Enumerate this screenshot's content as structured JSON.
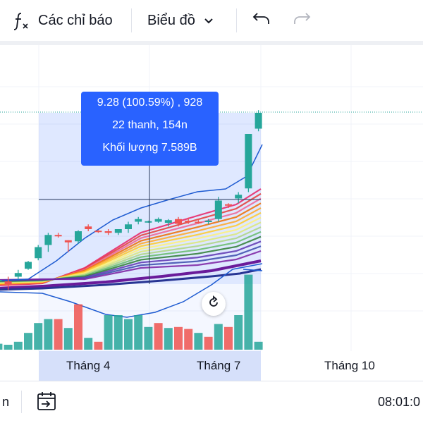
{
  "toolbar": {
    "indicators_label": "Các chỉ báo",
    "chart_type_label": "Biểu đồ"
  },
  "icons": [
    "function-icon",
    "chevron-down-icon",
    "undo-icon",
    "redo-icon",
    "calendar-goto-icon",
    "reset-chart-icon"
  ],
  "tooltip": {
    "line1": "9.28 (100.59%) , 928",
    "line2": "22 thanh, 154n",
    "line3": "Khối lượng 7.589B"
  },
  "x_axis": {
    "labels": [
      "Tháng 4",
      "Tháng 7",
      "Tháng 10"
    ]
  },
  "bottom_bar": {
    "range_label": "n",
    "time_label": "08:01:0"
  },
  "colors": {
    "up": "#26a69a",
    "down": "#ef5350",
    "accent": "#2962ff",
    "selection": "#d6e0fa"
  },
  "chart_data": {
    "type": "candlestick",
    "candles": [
      {
        "o": 4.63,
        "h": 4.7,
        "l": 4.52,
        "c": 4.63,
        "up": true
      },
      {
        "o": 4.64,
        "h": 4.74,
        "l": 4.52,
        "c": 4.64,
        "up": true
      },
      {
        "o": 4.64,
        "h": 4.74,
        "l": 4.52,
        "c": 4.64,
        "up": true
      },
      {
        "o": 4.56,
        "h": 4.7,
        "l": 4.45,
        "c": 4.61,
        "up": false
      },
      {
        "o": 4.7,
        "h": 4.83,
        "l": 4.65,
        "c": 4.77,
        "up": true
      },
      {
        "o": 4.85,
        "h": 5.0,
        "l": 4.83,
        "c": 4.98,
        "up": true
      },
      {
        "o": 5.05,
        "h": 5.3,
        "l": 5.01,
        "c": 5.26,
        "up": true
      },
      {
        "o": 5.3,
        "h": 5.53,
        "l": 5.17,
        "c": 5.49,
        "up": true
      },
      {
        "o": 5.49,
        "h": 5.53,
        "l": 5.44,
        "c": 5.49,
        "up": false
      },
      {
        "o": 5.39,
        "h": 5.39,
        "l": 5.17,
        "c": 5.35,
        "up": false
      },
      {
        "o": 5.37,
        "h": 5.58,
        "l": 5.32,
        "c": 5.56,
        "up": true
      },
      {
        "o": 5.6,
        "h": 5.69,
        "l": 5.56,
        "c": 5.65,
        "up": false
      },
      {
        "o": 5.57,
        "h": 5.58,
        "l": 5.53,
        "c": 5.56,
        "up": false
      },
      {
        "o": 5.53,
        "h": 5.6,
        "l": 5.49,
        "c": 5.56,
        "up": false
      },
      {
        "o": 5.53,
        "h": 5.6,
        "l": 5.49,
        "c": 5.6,
        "up": true
      },
      {
        "o": 5.6,
        "h": 5.74,
        "l": 5.53,
        "c": 5.69,
        "up": true
      },
      {
        "o": 5.74,
        "h": 5.83,
        "l": 5.69,
        "c": 5.79,
        "up": true
      },
      {
        "o": 5.75,
        "h": 5.76,
        "l": 5.72,
        "c": 5.75,
        "up": true
      },
      {
        "o": 5.74,
        "h": 5.82,
        "l": 5.72,
        "c": 5.79,
        "up": true
      },
      {
        "o": 5.72,
        "h": 5.79,
        "l": 5.65,
        "c": 5.77,
        "up": true
      },
      {
        "o": 5.7,
        "h": 5.83,
        "l": 5.65,
        "c": 5.79,
        "up": false
      },
      {
        "o": 5.74,
        "h": 5.82,
        "l": 5.7,
        "c": 5.76,
        "up": false
      },
      {
        "o": 5.74,
        "h": 5.77,
        "l": 5.7,
        "c": 5.74,
        "up": false
      },
      {
        "o": 5.74,
        "h": 5.79,
        "l": 5.69,
        "c": 5.76,
        "up": true
      },
      {
        "o": 5.79,
        "h": 6.21,
        "l": 5.74,
        "c": 6.14,
        "up": true
      },
      {
        "o": 6.07,
        "h": 6.09,
        "l": 6.0,
        "c": 6.07,
        "up": false
      },
      {
        "o": 6.18,
        "h": 6.3,
        "l": 6.09,
        "c": 6.25,
        "up": true
      },
      {
        "o": 6.37,
        "h": 7.4,
        "l": 6.3,
        "c": 7.4,
        "up": true
      },
      {
        "o": 7.5,
        "h": 7.85,
        "l": 7.45,
        "c": 7.8,
        "up": true
      }
    ],
    "volume": [
      {
        "v": 0.5,
        "up": true
      },
      {
        "v": 0.6,
        "up": true
      },
      {
        "v": 0.6,
        "up": true
      },
      {
        "v": 0.5,
        "up": true
      },
      {
        "v": 0.8,
        "up": true
      },
      {
        "v": 1.7,
        "up": true
      },
      {
        "v": 2.7,
        "up": true
      },
      {
        "v": 3.1,
        "up": true
      },
      {
        "v": 3.1,
        "up": false
      },
      {
        "v": 2.2,
        "up": true
      },
      {
        "v": 4.6,
        "up": false
      },
      {
        "v": 1.2,
        "up": true
      },
      {
        "v": 0.8,
        "up": false
      },
      {
        "v": 3.5,
        "up": true
      },
      {
        "v": 3.5,
        "up": true
      },
      {
        "v": 3.1,
        "up": true
      },
      {
        "v": 3.5,
        "up": true
      },
      {
        "v": 2.3,
        "up": true
      },
      {
        "v": 2.7,
        "up": false
      },
      {
        "v": 2.2,
        "up": true
      },
      {
        "v": 2.3,
        "up": false
      },
      {
        "v": 2.1,
        "up": false
      },
      {
        "v": 1.7,
        "up": true
      },
      {
        "v": 1.3,
        "up": false
      },
      {
        "v": 2.6,
        "up": true
      },
      {
        "v": 2.3,
        "up": false
      },
      {
        "v": 3.5,
        "up": true
      },
      {
        "v": 7.6,
        "up": true
      },
      {
        "v": 0.8,
        "up": true
      }
    ]
  }
}
